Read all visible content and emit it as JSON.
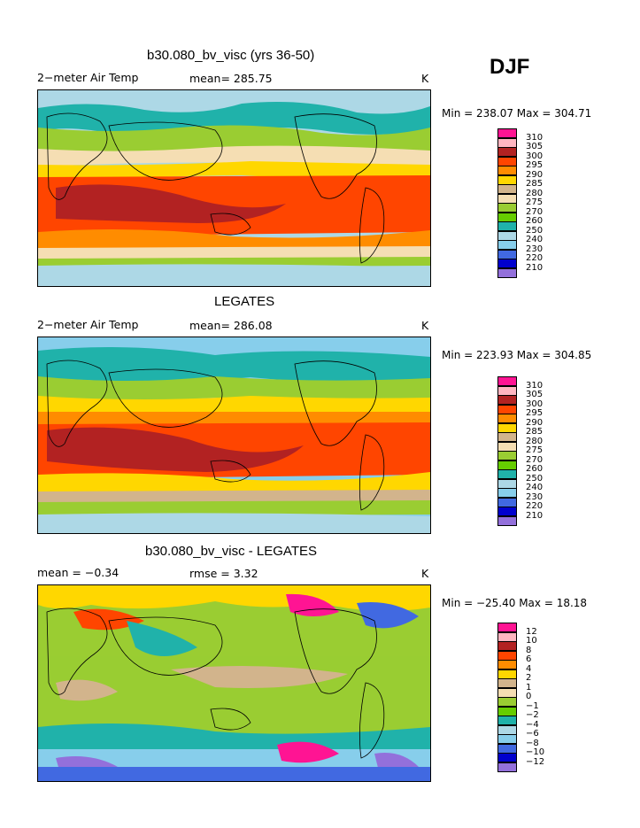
{
  "season": "DJF",
  "colors": [
    "#ff1493",
    "#ffb6c1",
    "#b22222",
    "#ff4500",
    "#ff8c00",
    "#ffd700",
    "#d2b48c",
    "#f5deb3",
    "#9acd32",
    "#66cd00",
    "#20b2aa",
    "#add8e6",
    "#87ceeb",
    "#4169e1",
    "#0000cd",
    "#9370db"
  ],
  "panels": [
    {
      "title": "b30.080_bv_visc (yrs 36-50)",
      "left_label": "2−meter Air Temp",
      "center_label": "mean= 285.75",
      "units": "K",
      "minmax": "Min = 238.07 Max = 304.71",
      "legend_labels": [
        "310",
        "305",
        "300",
        "295",
        "290",
        "285",
        "280",
        "275",
        "270",
        "260",
        "250",
        "240",
        "230",
        "220",
        "210"
      ]
    },
    {
      "title": "LEGATES",
      "left_label": "2−meter Air Temp",
      "center_label": "mean= 286.08",
      "units": "K",
      "minmax": "Min = 223.93 Max = 304.85",
      "legend_labels": [
        "310",
        "305",
        "300",
        "295",
        "290",
        "285",
        "280",
        "275",
        "270",
        "260",
        "250",
        "240",
        "230",
        "220",
        "210"
      ]
    },
    {
      "title": "b30.080_bv_visc - LEGATES",
      "left_label": "mean =   −0.34",
      "center_label": "rmse =    3.32",
      "units": "K",
      "minmax": "Min = −25.40 Max =   18.18",
      "legend_labels": [
        "12",
        "10",
        "8",
        "6",
        "4",
        "2",
        "1",
        "0",
        "−1",
        "−2",
        "−4",
        "−6",
        "−8",
        "−10",
        "−12"
      ]
    }
  ]
}
